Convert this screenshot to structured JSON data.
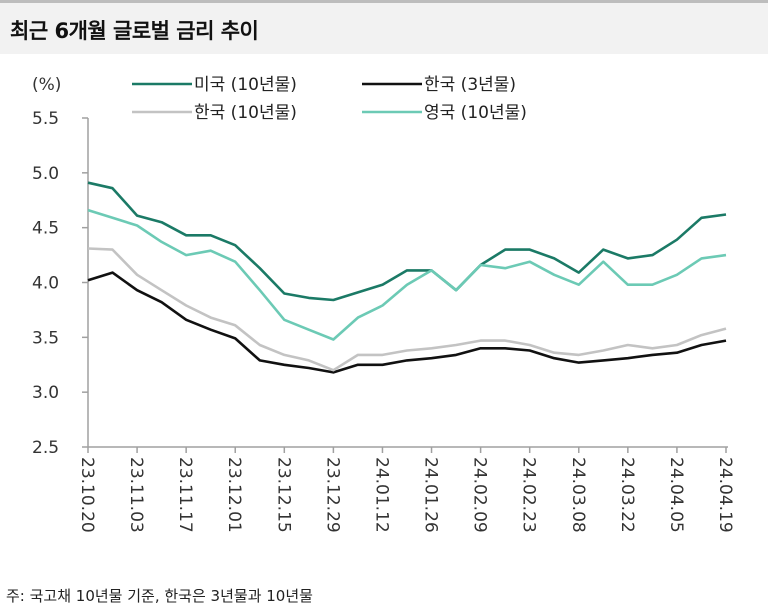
{
  "title": "최근 6개월 글로벌 금리 추이",
  "footnote": "주: 국고채 10년물 기준, 한국은 3년물과 10년물",
  "chart_data": {
    "type": "line",
    "title": "최근 6개월 글로벌 금리 추이",
    "ylabel": "(%)",
    "xlabel": "",
    "ylim": [
      2.5,
      5.5
    ],
    "yticks": [
      "5.5",
      "5.0",
      "4.5",
      "4.0",
      "3.5",
      "3.0",
      "2.5"
    ],
    "xticks": [
      "23.10.20",
      "23.11.03",
      "23.11.17",
      "23.12.01",
      "23.12.15",
      "23.12.29",
      "24.01.12",
      "24.01.26",
      "24.02.09",
      "24.02.23",
      "24.03.08",
      "24.03.22",
      "24.04.05",
      "24.04.19"
    ],
    "x": [
      "23.10.20",
      "23.10.27",
      "23.11.03",
      "23.11.10",
      "23.11.17",
      "23.11.24",
      "23.12.01",
      "23.12.08",
      "23.12.15",
      "23.12.22",
      "23.12.29",
      "24.01.05",
      "24.01.12",
      "24.01.19",
      "24.01.26",
      "24.02.02",
      "24.02.09",
      "24.02.16",
      "24.02.23",
      "24.03.01",
      "24.03.08",
      "24.03.15",
      "24.03.22",
      "24.03.29",
      "24.04.05",
      "24.04.12",
      "24.04.19"
    ],
    "legend_position": "top",
    "grid": false,
    "series": [
      {
        "name": "미국 (10년물)",
        "color": "#1b7a66",
        "values": [
          4.91,
          4.86,
          4.61,
          4.55,
          4.43,
          4.43,
          4.34,
          4.13,
          3.9,
          3.86,
          3.84,
          3.91,
          3.98,
          4.11,
          4.11,
          3.93,
          4.16,
          4.3,
          4.3,
          4.22,
          4.09,
          4.3,
          4.22,
          4.25,
          4.39,
          4.59,
          4.62
        ]
      },
      {
        "name": "한국 (3년물)",
        "color": "#111111",
        "values": [
          4.02,
          4.09,
          3.93,
          3.82,
          3.66,
          3.57,
          3.49,
          3.29,
          3.25,
          3.22,
          3.18,
          3.25,
          3.25,
          3.29,
          3.31,
          3.34,
          3.4,
          3.4,
          3.38,
          3.31,
          3.27,
          3.29,
          3.31,
          3.34,
          3.36,
          3.43,
          3.47
        ]
      },
      {
        "name": "한국 (10년물)",
        "color": "#c3c3c3",
        "values": [
          4.31,
          4.3,
          4.07,
          3.93,
          3.79,
          3.68,
          3.61,
          3.43,
          3.34,
          3.29,
          3.2,
          3.34,
          3.34,
          3.38,
          3.4,
          3.43,
          3.47,
          3.47,
          3.43,
          3.36,
          3.34,
          3.38,
          3.43,
          3.4,
          3.43,
          3.52,
          3.58
        ]
      },
      {
        "name": "영국 (10년물)",
        "color": "#6ccab5",
        "values": [
          4.66,
          4.59,
          4.52,
          4.37,
          4.25,
          4.29,
          4.19,
          3.93,
          3.66,
          3.57,
          3.48,
          3.68,
          3.79,
          3.98,
          4.11,
          3.93,
          4.16,
          4.13,
          4.19,
          4.07,
          3.98,
          4.19,
          3.98,
          3.98,
          4.07,
          4.22,
          4.25
        ]
      }
    ]
  }
}
